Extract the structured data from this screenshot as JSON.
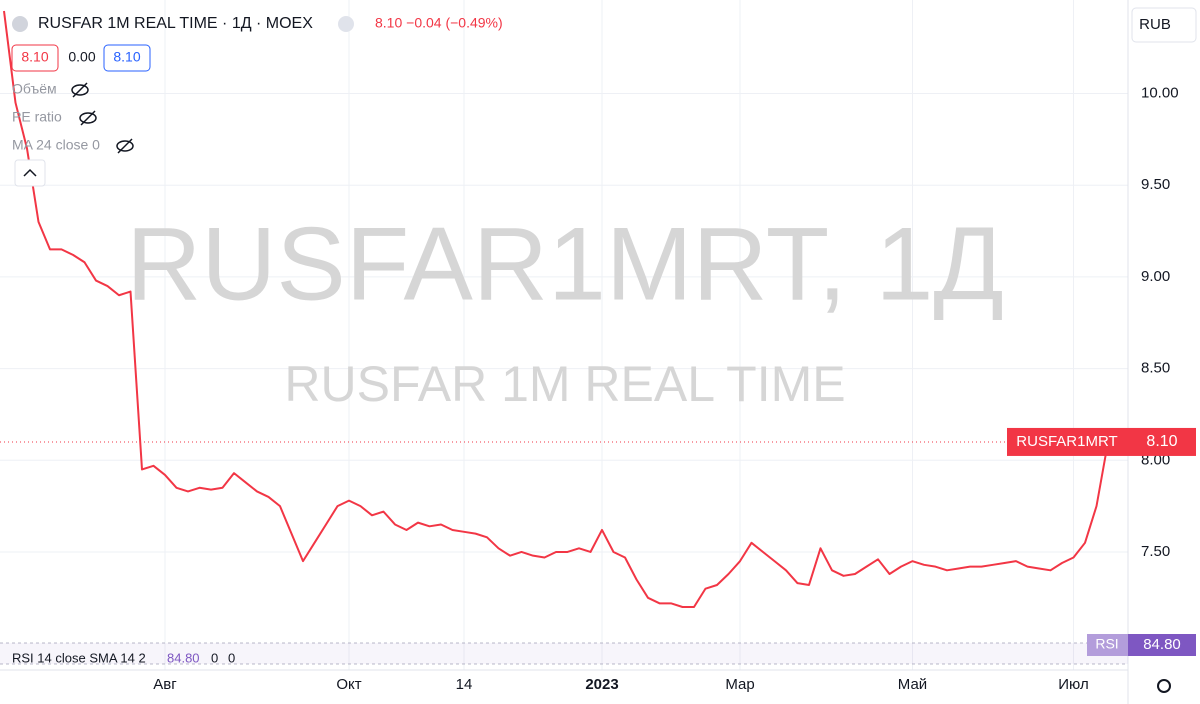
{
  "chart_data": {
    "type": "line",
    "title": "RUSFAR 1M REAL TIME · 1Д · MOEX",
    "quote": "8.10 −0.04 (−0.49%)",
    "ohlc_boxes": [
      "8.10",
      "0.00",
      "8.10"
    ],
    "indicators": [
      "Объём",
      "PE ratio",
      "MA 24 close 0"
    ],
    "watermark": [
      "RUSFAR1MRT, 1Д",
      "RUSFAR 1M REAL TIME"
    ],
    "currency": "RUB",
    "price_line": {
      "value": 8.1,
      "name": "RUSFAR1MRT",
      "label": "8.10"
    },
    "rsi_legend": [
      "RSI 14 close SMA 14 2",
      "84.80",
      "0",
      "0"
    ],
    "rsi_tag": [
      "RSI",
      "84.80"
    ],
    "categories": [
      null,
      null,
      null,
      null,
      null,
      null,
      null,
      null,
      null,
      null,
      null,
      null,
      null,
      null,
      "Авг",
      null,
      null,
      null,
      null,
      null,
      null,
      null,
      null,
      null,
      null,
      null,
      null,
      null,
      null,
      null,
      "Окт",
      null,
      null,
      null,
      null,
      null,
      null,
      null,
      null,
      null,
      "14",
      null,
      null,
      null,
      null,
      null,
      null,
      null,
      null,
      null,
      null,
      null,
      "2023",
      null,
      null,
      null,
      null,
      null,
      null,
      null,
      null,
      null,
      null,
      null,
      "Мар",
      null,
      null,
      null,
      null,
      null,
      null,
      null,
      null,
      null,
      null,
      null,
      null,
      null,
      null,
      "Май",
      null,
      null,
      null,
      null,
      null,
      null,
      null,
      null,
      null,
      null,
      null,
      null,
      null,
      "Июл",
      null,
      null,
      null
    ],
    "series": [
      {
        "name": "RUSFAR1MRT",
        "color": "#f23645",
        "values": [
          10.45,
          9.95,
          9.7,
          9.3,
          9.15,
          9.15,
          9.12,
          9.08,
          8.98,
          8.95,
          8.9,
          8.92,
          7.95,
          7.97,
          7.92,
          7.85,
          7.83,
          7.85,
          7.84,
          7.85,
          7.93,
          7.88,
          7.83,
          7.8,
          7.75,
          7.6,
          7.45,
          7.55,
          7.65,
          7.75,
          7.78,
          7.75,
          7.7,
          7.72,
          7.65,
          7.62,
          7.66,
          7.64,
          7.65,
          7.62,
          7.61,
          7.6,
          7.58,
          7.52,
          7.48,
          7.5,
          7.48,
          7.47,
          7.5,
          7.5,
          7.52,
          7.5,
          7.62,
          7.5,
          7.47,
          7.35,
          7.25,
          7.22,
          7.22,
          7.2,
          7.2,
          7.3,
          7.32,
          7.38,
          7.45,
          7.55,
          7.5,
          7.45,
          7.4,
          7.33,
          7.32,
          7.52,
          7.4,
          7.37,
          7.38,
          7.42,
          7.46,
          7.38,
          7.42,
          7.45,
          7.43,
          7.42,
          7.4,
          7.41,
          7.42,
          7.42,
          7.43,
          7.44,
          7.45,
          7.42,
          7.41,
          7.4,
          7.44,
          7.47,
          7.55,
          7.75,
          8.1
        ]
      }
    ],
    "ylim": [
      7.02,
      10.51
    ],
    "yticks": [
      {
        "value": 7.5,
        "label": "7.50"
      },
      {
        "value": 8,
        "label": "8.00"
      },
      {
        "value": 8.5,
        "label": "8.50"
      },
      {
        "value": 9,
        "label": "9.00"
      },
      {
        "value": 9.5,
        "label": "9.50"
      },
      {
        "value": 10,
        "label": "10.00"
      }
    ],
    "grid": true
  }
}
